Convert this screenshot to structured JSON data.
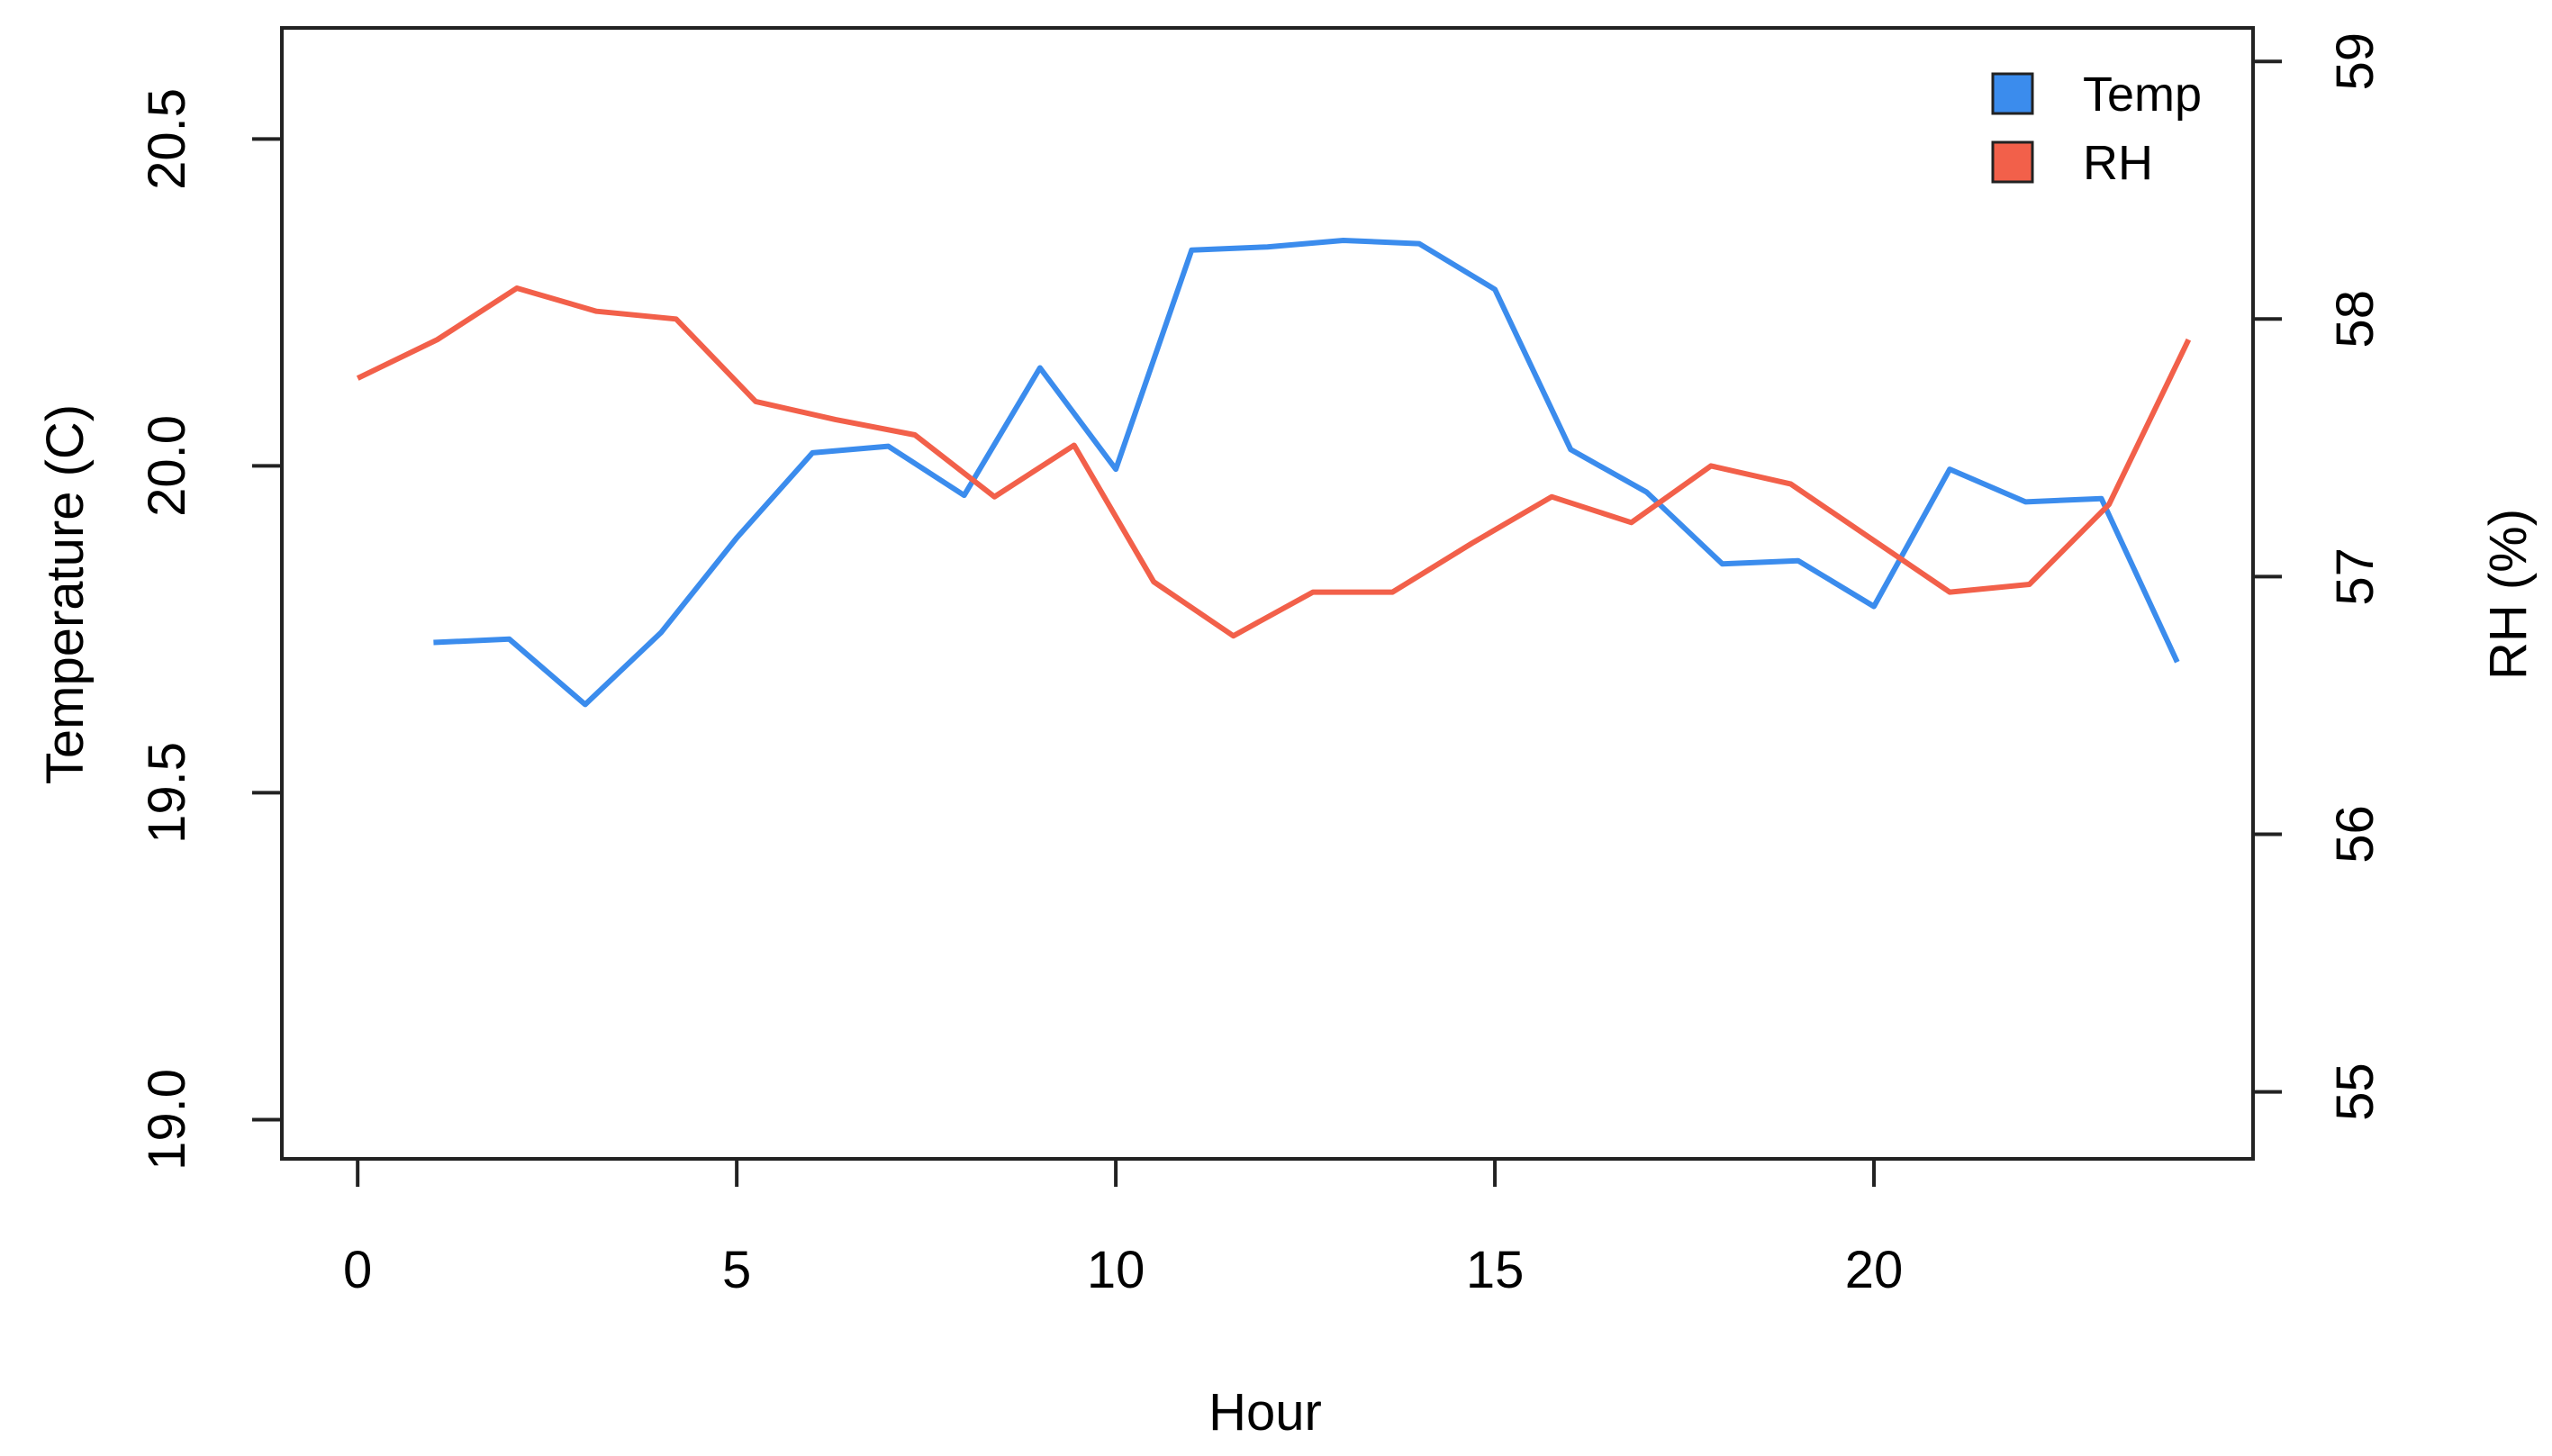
{
  "chart_data": {
    "type": "line",
    "title": "",
    "xlabel": "Hour",
    "ylabel_left": "Temperature (C)",
    "ylabel_right": "RH (%)",
    "xlim": [
      -1,
      25
    ],
    "xticks": [
      0,
      5,
      10,
      15,
      20
    ],
    "xtick_labels": [
      "0",
      "5",
      "10",
      "15",
      "20"
    ],
    "ylim_left": [
      18.94,
      20.67
    ],
    "yticks_left": [
      19.0,
      19.5,
      20.0,
      20.5
    ],
    "ytick_labels_left": [
      "19.0",
      "19.5",
      "20.0",
      "20.5"
    ],
    "ylim_right": [
      54.74,
      59.13
    ],
    "yticks_right": [
      55,
      56,
      57,
      58,
      59
    ],
    "ytick_labels_right": [
      "55",
      "56",
      "57",
      "58",
      "59"
    ],
    "grid": false,
    "legend": {
      "position": "top-right"
    },
    "series": [
      {
        "name": "Temp",
        "axis": "left",
        "color": "#3b8ced",
        "x": [
          1,
          2,
          3,
          4,
          5,
          6,
          7,
          8,
          9,
          10,
          11,
          12,
          13,
          14,
          15,
          16,
          17,
          18,
          19,
          20,
          21,
          22,
          23,
          24
        ],
        "y": [
          19.73,
          19.735,
          19.635,
          19.745,
          19.89,
          20.02,
          20.03,
          19.955,
          20.15,
          19.995,
          20.33,
          20.335,
          20.345,
          20.34,
          20.27,
          20.025,
          19.96,
          19.85,
          19.855,
          19.785,
          19.995,
          19.945,
          19.95,
          19.7
        ]
      },
      {
        "name": "RH",
        "axis": "right",
        "color": "#f2604a",
        "x": [
          0,
          1.05,
          2.1,
          3.15,
          4.2,
          5.25,
          6.3,
          7.35,
          8.4,
          9.45,
          10.5,
          11.55,
          12.6,
          13.65,
          14.7,
          15.75,
          16.8,
          17.85,
          18.9,
          19.95,
          21.0,
          22.05,
          23.1,
          24.15
        ],
        "y": [
          57.77,
          57.92,
          58.12,
          58.03,
          58.0,
          57.68,
          57.61,
          57.55,
          57.31,
          57.51,
          56.98,
          56.77,
          56.94,
          56.94,
          57.13,
          57.31,
          57.21,
          57.43,
          57.36,
          57.15,
          56.94,
          56.97,
          57.28,
          57.92
        ]
      }
    ]
  }
}
